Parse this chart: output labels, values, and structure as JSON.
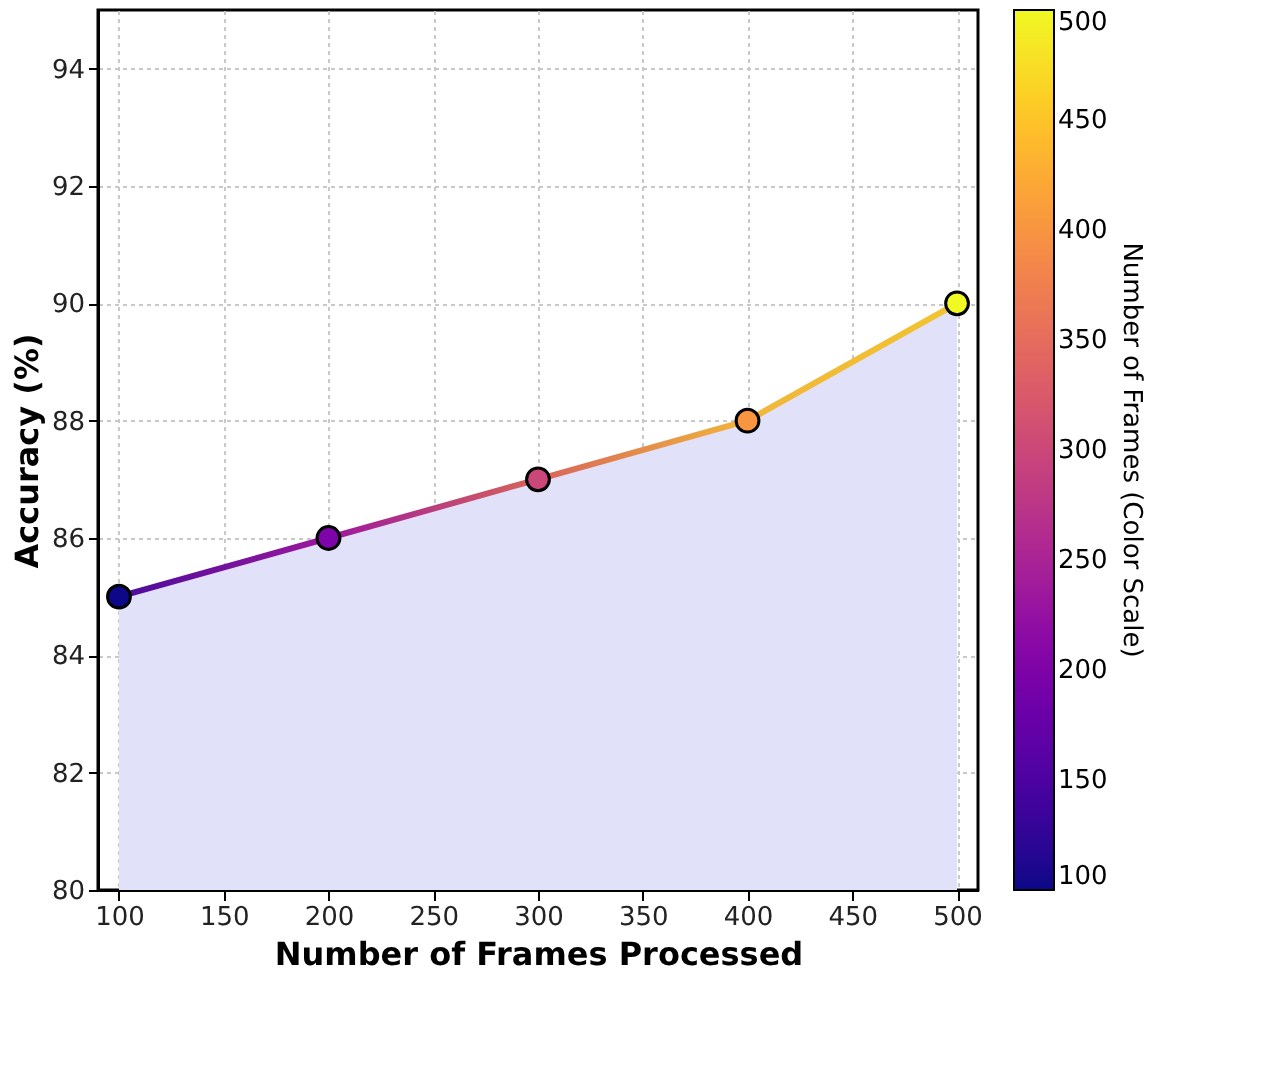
{
  "chart_data": {
    "type": "area",
    "xlabel": "Number of Frames Processed",
    "ylabel": "Accuracy (%)",
    "clabel": "Number of Frames (Color Scale)",
    "x": [
      100,
      200,
      300,
      400,
      500
    ],
    "series": [
      {
        "color": "#e1e1f9",
        "values": [
          85,
          86,
          87,
          88,
          90
        ],
        "colors": [
          "#4b0c9b",
          "#9c179e",
          "#d8645a",
          "#f2b63a",
          "#f0c430"
        ]
      }
    ],
    "xlim": [
      90,
      510
    ],
    "xticks": [
      100,
      150,
      200,
      250,
      300,
      350,
      400,
      450,
      500
    ],
    "ylim": [
      80,
      95
    ],
    "yticks": [
      80,
      82,
      84,
      86,
      88,
      90,
      92,
      94
    ],
    "clim": [
      100,
      500
    ],
    "cticks": [
      100,
      150,
      200,
      250,
      300,
      350,
      400,
      450,
      500
    ],
    "grid": true,
    "marker": "circle",
    "line_style": "solid"
  }
}
